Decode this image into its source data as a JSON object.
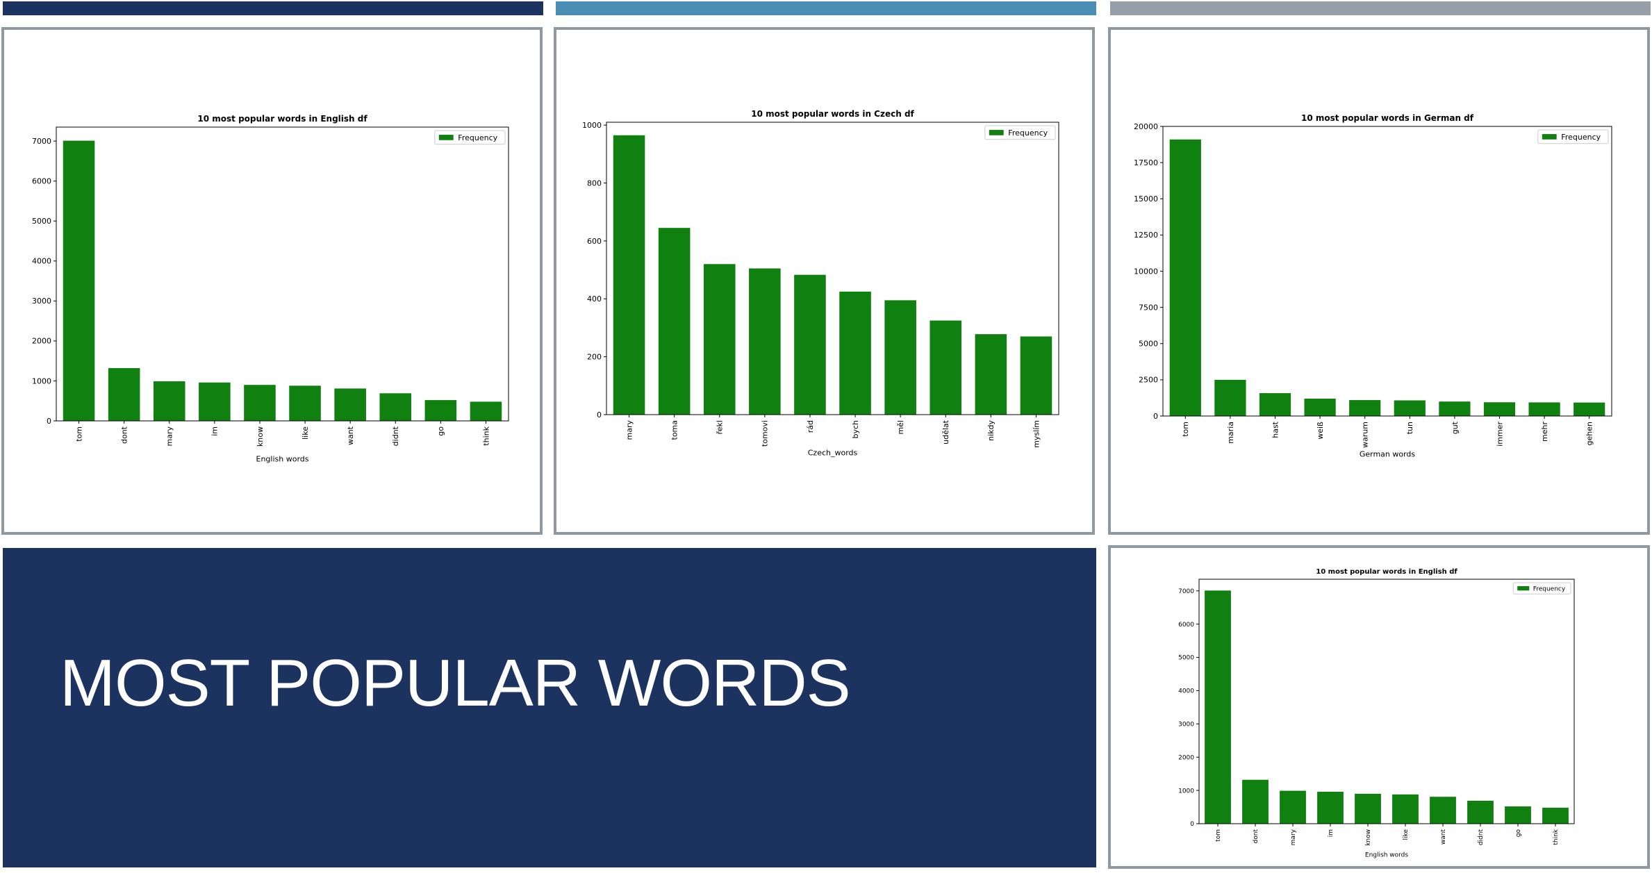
{
  "slide": {
    "title": "MOST POPULAR WORDS",
    "colors": {
      "navy": "#1c335f",
      "steel_blue": "#4a8eb5",
      "gray": "#97a0a8",
      "panel_border": "#8e99a2",
      "bar_green": "#108010"
    }
  },
  "chart_data": [
    {
      "type": "bar",
      "title": "10 most popular words in English df",
      "xlabel": "English words",
      "ylabel": "",
      "categories": [
        "tom",
        "dont",
        "mary",
        "im",
        "know",
        "like",
        "want",
        "didnt",
        "go",
        "think"
      ],
      "series": [
        {
          "name": "Frequency",
          "values": [
            7010,
            1320,
            990,
            960,
            900,
            880,
            810,
            690,
            520,
            480
          ]
        }
      ],
      "ylim": [
        0,
        7350
      ],
      "yticks": [
        0,
        1000,
        2000,
        3000,
        4000,
        5000,
        6000,
        7000
      ],
      "legend": "top-right",
      "grid": false
    },
    {
      "type": "bar",
      "title": "10 most popular words in Czech df",
      "xlabel": "Czech_words",
      "ylabel": "",
      "categories": [
        "mary",
        "toma",
        "řekl",
        "tomovi",
        "rád",
        "bych",
        "měl",
        "udělat",
        "nikdy",
        "myslím"
      ],
      "series": [
        {
          "name": "Frequency",
          "values": [
            965,
            645,
            520,
            505,
            483,
            425,
            395,
            325,
            278,
            270
          ]
        }
      ],
      "ylim": [
        0,
        1010
      ],
      "yticks": [
        0,
        200,
        400,
        600,
        800,
        1000
      ],
      "legend": "top-right",
      "grid": false
    },
    {
      "type": "bar",
      "title": "10 most popular words in German df",
      "xlabel": "German words",
      "ylabel": "",
      "categories": [
        "tom",
        "maria",
        "hast",
        "weiß",
        "warum",
        "tun",
        "gut",
        "immer",
        "mehr",
        "gehen"
      ],
      "series": [
        {
          "name": "Frequency",
          "values": [
            19100,
            2500,
            1580,
            1200,
            1100,
            1080,
            1000,
            950,
            940,
            930
          ]
        }
      ],
      "ylim": [
        0,
        20000
      ],
      "yticks": [
        0,
        2500,
        5000,
        7500,
        10000,
        12500,
        15000,
        17500,
        20000
      ],
      "legend": "top-right",
      "grid": false
    },
    {
      "type": "bar",
      "title": "10 most popular words in English df",
      "xlabel": "English words",
      "ylabel": "",
      "categories": [
        "tom",
        "dont",
        "mary",
        "im",
        "know",
        "like",
        "want",
        "didnt",
        "go",
        "think"
      ],
      "series": [
        {
          "name": "Frequency",
          "values": [
            7010,
            1320,
            990,
            960,
            900,
            880,
            810,
            690,
            520,
            480
          ]
        }
      ],
      "ylim": [
        0,
        7350
      ],
      "yticks": [
        0,
        1000,
        2000,
        3000,
        4000,
        5000,
        6000,
        7000
      ],
      "legend": "top-right",
      "grid": false
    }
  ]
}
